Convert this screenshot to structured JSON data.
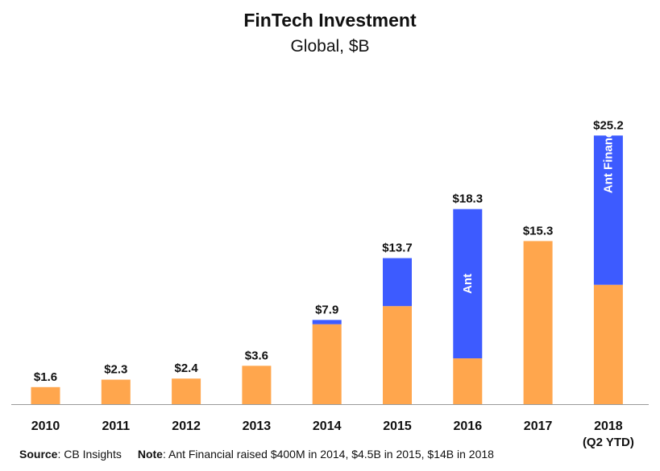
{
  "chart_data": {
    "type": "bar",
    "stacked": true,
    "title": "FinTech Investment",
    "subtitle": "Global, $B",
    "categories": [
      "2010",
      "2011",
      "2012",
      "2013",
      "2014",
      "2015",
      "2016",
      "2017",
      "2018"
    ],
    "category_sublabels": [
      "",
      "",
      "",
      "",
      "",
      "",
      "",
      "",
      "(Q2 YTD)"
    ],
    "series": [
      {
        "values": [
          1.6,
          2.3,
          2.4,
          3.6,
          7.5,
          9.2,
          4.3,
          15.3,
          11.2
        ]
      },
      {
        "values": [
          0,
          0,
          0,
          0,
          0.4,
          4.5,
          14.0,
          0,
          14.0
        ]
      }
    ],
    "segment_labels": [
      "",
      "",
      "",
      "",
      "",
      "",
      "Ant",
      "",
      "Ant Financial"
    ],
    "totals": [
      1.6,
      2.3,
      2.4,
      3.6,
      7.9,
      13.7,
      18.3,
      15.3,
      25.2
    ],
    "total_labels": [
      "$1.6",
      "$2.3",
      "$2.4",
      "$3.6",
      "$7.9",
      "$13.7",
      "$18.3",
      "$15.3",
      "$25.2"
    ],
    "ylim": [
      0,
      27
    ],
    "grid": false,
    "colors": {
      "base": "#FFA64D",
      "ant": "#3D5BFF"
    }
  },
  "footer": {
    "source_label": "Source",
    "source_text": ": CB Insights",
    "note_label": "Note",
    "note_text": ": Ant Financial raised $400M in 2014, $4.5B in 2015, $14B in 2018"
  }
}
